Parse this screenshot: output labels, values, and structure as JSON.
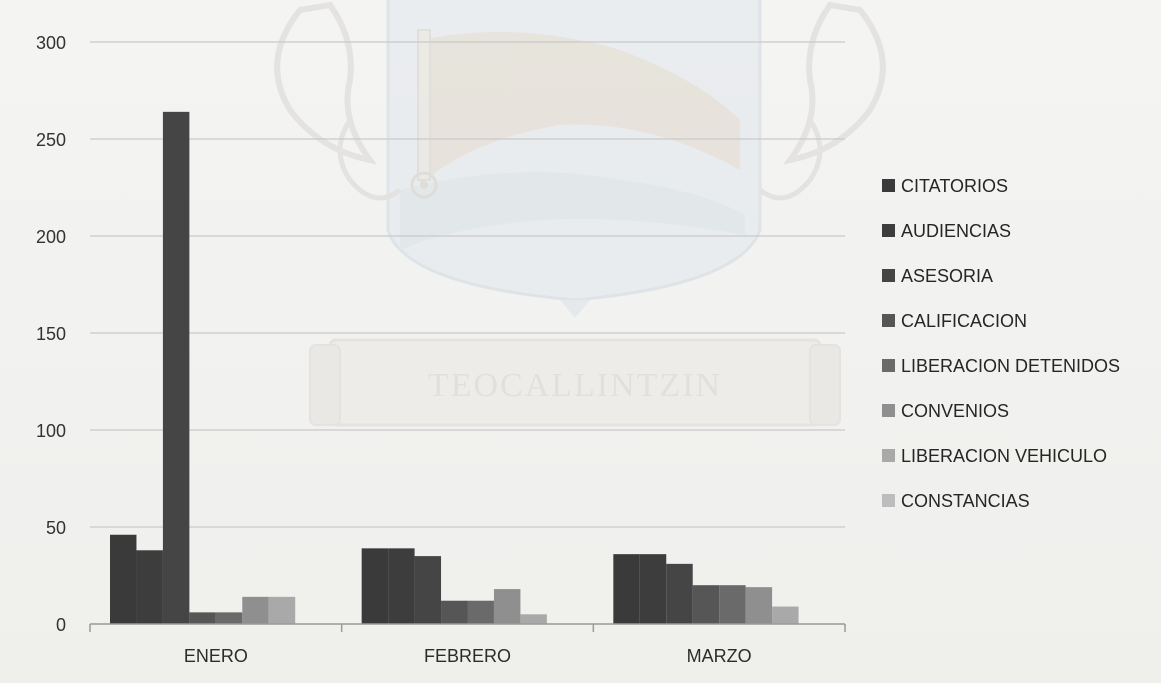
{
  "chart_data": {
    "type": "bar",
    "categories": [
      "ENERO",
      "FEBRERO",
      "MARZO"
    ],
    "series": [
      {
        "name": "CITATORIOS",
        "values": [
          46,
          39,
          36
        ],
        "color": "#3a3a3a"
      },
      {
        "name": "AUDIENCIAS",
        "values": [
          38,
          39,
          36
        ],
        "color": "#3d3d3d"
      },
      {
        "name": "ASESORIA",
        "values": [
          264,
          35,
          31
        ],
        "color": "#454545"
      },
      {
        "name": "CALIFICACION",
        "values": [
          6,
          12,
          20
        ],
        "color": "#565656"
      },
      {
        "name": "LIBERACION DETENIDOS",
        "values": [
          6,
          12,
          20
        ],
        "color": "#6a6a6a"
      },
      {
        "name": "CONVENIOS",
        "values": [
          14,
          18,
          19
        ],
        "color": "#8f8f8f"
      },
      {
        "name": "LIBERACION VEHICULO",
        "values": [
          14,
          5,
          9
        ],
        "color": "#a9a9a9"
      },
      {
        "name": "CONSTANCIAS",
        "values": [
          0,
          0,
          0
        ],
        "color": "#bdbdbd"
      }
    ],
    "yticks": [
      "0",
      "50",
      "100",
      "150",
      "200",
      "250",
      "300"
    ],
    "ylim": [
      0,
      300
    ],
    "grid": true,
    "legend_position": "right"
  },
  "watermark": {
    "banner_text": "TEOCALLINTZIN"
  }
}
